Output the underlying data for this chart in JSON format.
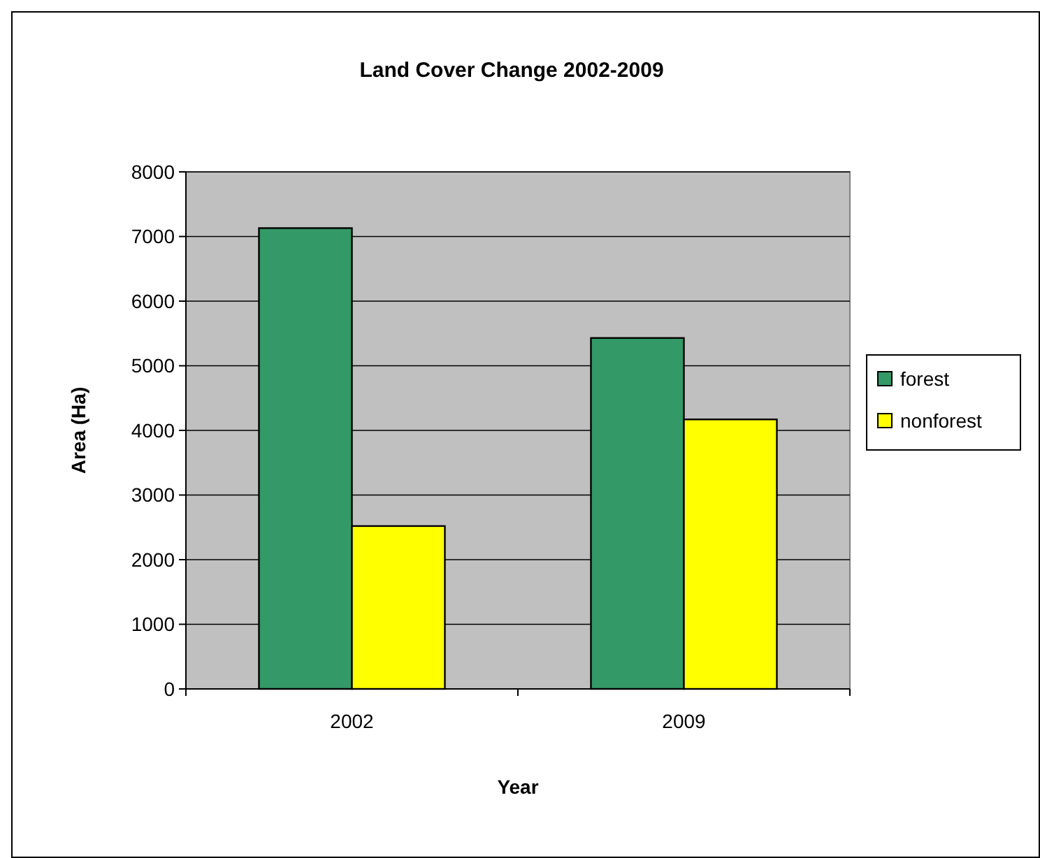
{
  "chart_data": {
    "type": "bar",
    "title": "Land Cover Change 2002-2009",
    "xlabel": "Year",
    "ylabel": "Area (Ha)",
    "categories": [
      "2002",
      "2009"
    ],
    "series": [
      {
        "name": "forest",
        "color": "#339966",
        "values": [
          7130,
          5430
        ]
      },
      {
        "name": "nonforest",
        "color": "#ffff00",
        "values": [
          2520,
          4170
        ]
      }
    ],
    "ylim": [
      0,
      8000
    ],
    "yticks": [
      0,
      1000,
      2000,
      3000,
      4000,
      5000,
      6000,
      7000,
      8000
    ],
    "grid": "y",
    "legend": "right"
  }
}
